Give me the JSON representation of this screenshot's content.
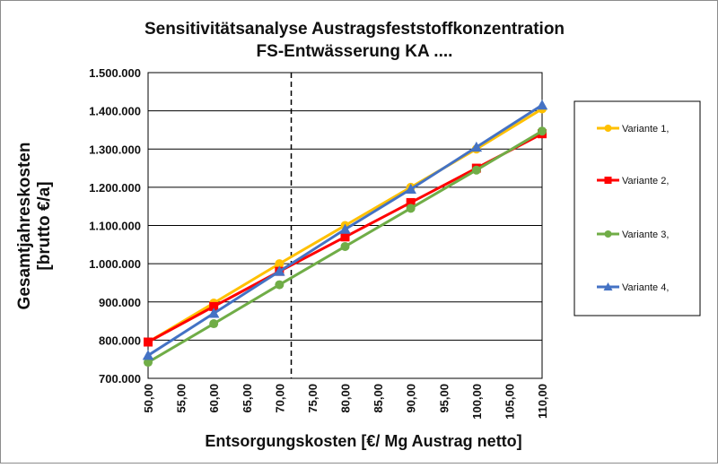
{
  "chart_data": {
    "type": "line",
    "title": "Sensitivitätsanalyse Austragsfeststoffkonzentration",
    "subtitle": "FS-Entwässerung KA ....",
    "ylabel_line1": "Gesamtjahreskosten",
    "ylabel_line2": "[brutto €/a]",
    "xlabel": "Entsorgungskosten [€/ Mg Austrag netto]",
    "xlim": [
      50,
      110
    ],
    "ylim": [
      700000,
      1500000
    ],
    "x_ticks": [
      "50,00",
      "55,00",
      "60,00",
      "65,00",
      "70,00",
      "75,00",
      "80,00",
      "85,00",
      "90,00",
      "95,00",
      "100,00",
      "105,00",
      "110,00"
    ],
    "y_ticks": [
      "700.000",
      "800.000",
      "900.000",
      "1.000.000",
      "1.100.000",
      "1.200.000",
      "1.300.000",
      "1.400.000",
      "1.500.000"
    ],
    "grid": "horizontal",
    "legend_position": "right",
    "reference_line_x": 71.8,
    "series": [
      {
        "name": "Variante 1,",
        "color": "#FFC000",
        "marker": "circle",
        "x": [
          50,
          60,
          70,
          80,
          90,
          100,
          110
        ],
        "y": [
          795000,
          897000,
          1000000,
          1100000,
          1200000,
          1300000,
          1405000
        ]
      },
      {
        "name": "Variante 2,",
        "color": "#FF0000",
        "marker": "square",
        "x": [
          50,
          60,
          70,
          80,
          90,
          100,
          110
        ],
        "y": [
          795000,
          888000,
          980000,
          1070000,
          1160000,
          1250000,
          1340000
        ]
      },
      {
        "name": "Variante 3,",
        "color": "#70AD47",
        "marker": "circle",
        "x": [
          50,
          60,
          70,
          80,
          90,
          100,
          110
        ],
        "y": [
          742000,
          843000,
          945000,
          1045000,
          1145000,
          1245000,
          1347000
        ]
      },
      {
        "name": "Variante 4,",
        "color": "#4472C4",
        "marker": "triangle",
        "x": [
          50,
          60,
          70,
          80,
          90,
          100,
          110
        ],
        "y": [
          760000,
          870000,
          980000,
          1090000,
          1195000,
          1305000,
          1415000
        ]
      }
    ]
  }
}
